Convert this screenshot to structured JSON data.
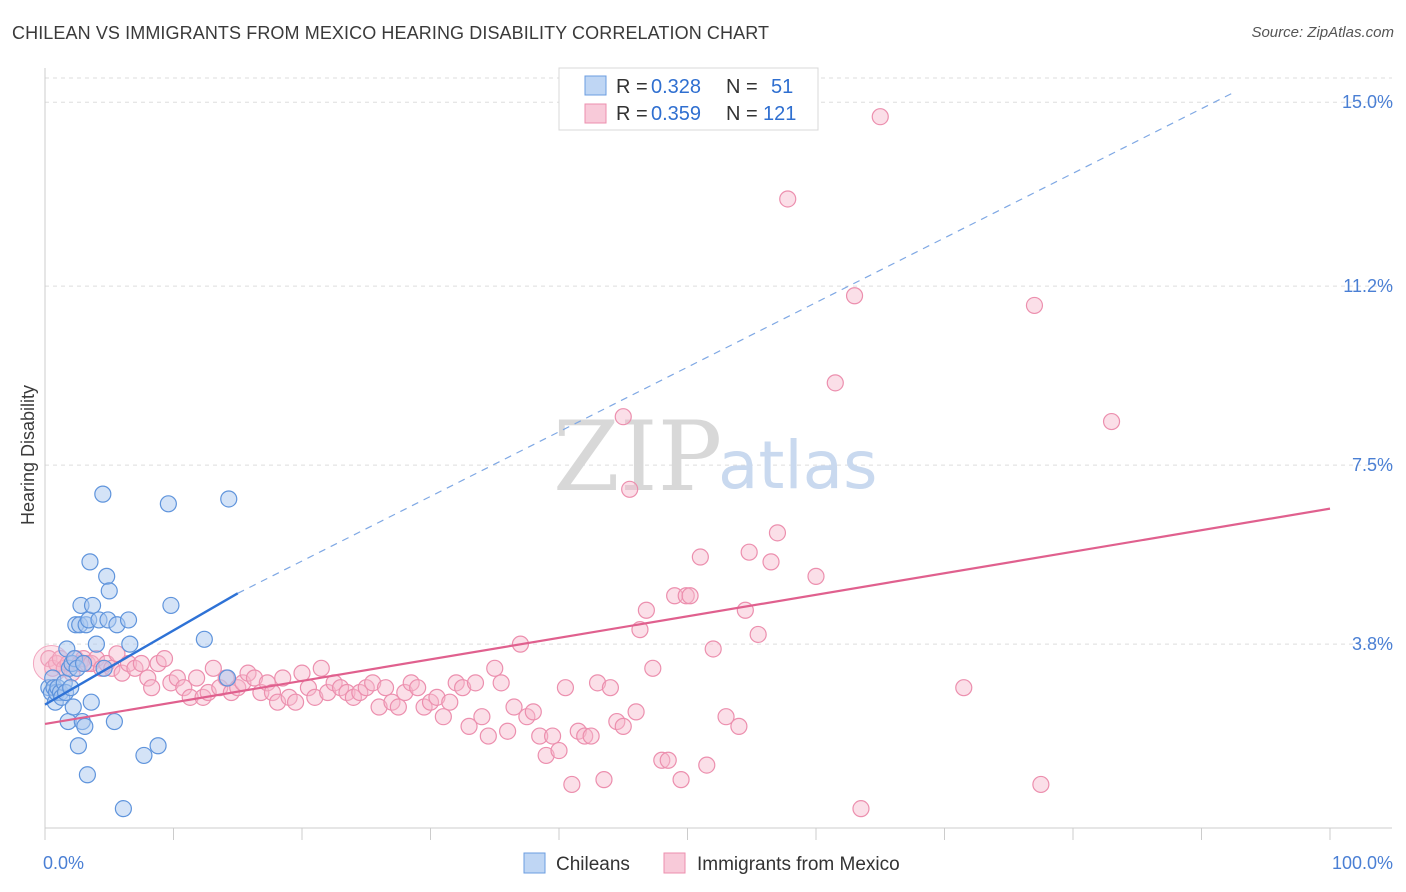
{
  "title": "CHILEAN VS IMMIGRANTS FROM MEXICO HEARING DISABILITY CORRELATION CHART",
  "source": "Source: ZipAtlas.com",
  "watermark": {
    "zip": "ZIP",
    "atlas": "atlas"
  },
  "colors": {
    "blue": "#4a86d8",
    "blue_fill": "#a9c8f0",
    "pink": "#e0608e",
    "pink_fill": "#f6b8cc",
    "tick": "#4a7fd4"
  },
  "legend": {
    "row1": {
      "r_label": "R = ",
      "r_value": "0.328",
      "n_label": "N = ",
      "n_value": "51"
    },
    "row2": {
      "r_label": "R = ",
      "r_value": "0.359",
      "n_label": "N = ",
      "n_value": "121"
    }
  },
  "bottom_legend": {
    "series1": "Chileans",
    "series2": "Immigrants from Mexico"
  },
  "chart_data": {
    "type": "scatter",
    "ylabel": "Hearing Disability",
    "xlim": [
      0,
      100
    ],
    "ylim": [
      0,
      15.5
    ],
    "x_ticks": [
      {
        "v": 0,
        "label": "0.0%"
      },
      {
        "v": 100,
        "label": "100.0%"
      }
    ],
    "y_ticks": [
      {
        "v": 3.8,
        "label": "3.8%"
      },
      {
        "v": 7.5,
        "label": "7.5%"
      },
      {
        "v": 11.2,
        "label": "11.2%"
      },
      {
        "v": 15.0,
        "label": "15.0%"
      }
    ],
    "grid": true,
    "series": [
      {
        "name": "Chileans",
        "trend": {
          "x0": 0,
          "y0": 2.55,
          "x1": 15,
          "y1": 4.85,
          "x_dash_end": 92.5,
          "y_dash_end": 15.2
        },
        "points": [
          [
            0.3,
            2.9
          ],
          [
            0.5,
            2.8
          ],
          [
            0.6,
            3.1
          ],
          [
            0.7,
            2.9
          ],
          [
            0.8,
            2.6
          ],
          [
            0.9,
            2.8
          ],
          [
            1.0,
            2.9
          ],
          [
            1.2,
            2.8
          ],
          [
            1.3,
            2.7
          ],
          [
            1.5,
            3.0
          ],
          [
            1.6,
            2.8
          ],
          [
            1.7,
            3.7
          ],
          [
            1.8,
            2.2
          ],
          [
            1.9,
            3.3
          ],
          [
            2.0,
            2.9
          ],
          [
            2.1,
            3.4
          ],
          [
            2.2,
            2.5
          ],
          [
            2.3,
            3.5
          ],
          [
            2.4,
            4.2
          ],
          [
            2.5,
            3.3
          ],
          [
            2.6,
            1.7
          ],
          [
            2.7,
            4.2
          ],
          [
            2.8,
            4.6
          ],
          [
            2.9,
            2.2
          ],
          [
            3.0,
            3.4
          ],
          [
            3.1,
            2.1
          ],
          [
            3.2,
            4.2
          ],
          [
            3.3,
            1.1
          ],
          [
            3.4,
            4.3
          ],
          [
            3.5,
            5.5
          ],
          [
            3.6,
            2.6
          ],
          [
            3.7,
            4.6
          ],
          [
            4.0,
            3.8
          ],
          [
            4.2,
            4.3
          ],
          [
            4.5,
            6.9
          ],
          [
            4.6,
            3.3
          ],
          [
            4.8,
            5.2
          ],
          [
            4.9,
            4.3
          ],
          [
            5.0,
            4.9
          ],
          [
            5.4,
            2.2
          ],
          [
            5.6,
            4.2
          ],
          [
            6.1,
            0.4
          ],
          [
            6.5,
            4.3
          ],
          [
            6.6,
            3.8
          ],
          [
            7.7,
            1.5
          ],
          [
            8.8,
            1.7
          ],
          [
            9.6,
            6.7
          ],
          [
            9.8,
            4.6
          ],
          [
            12.4,
            3.9
          ],
          [
            14.2,
            3.1
          ],
          [
            14.3,
            6.8
          ]
        ]
      },
      {
        "name": "Immigrants from Mexico",
        "trend": {
          "x0": 0,
          "y0": 2.15,
          "x1": 100,
          "y1": 6.6
        },
        "points": [
          [
            0.3,
            3.5
          ],
          [
            0.6,
            3.3
          ],
          [
            0.9,
            3.4
          ],
          [
            1.2,
            3.5
          ],
          [
            1.5,
            3.3
          ],
          [
            1.8,
            3.4
          ],
          [
            2.1,
            3.2
          ],
          [
            2.4,
            3.5
          ],
          [
            2.7,
            3.4
          ],
          [
            3.0,
            3.5
          ],
          [
            3.3,
            3.4
          ],
          [
            3.6,
            3.4
          ],
          [
            4.0,
            3.5
          ],
          [
            4.4,
            3.3
          ],
          [
            4.8,
            3.4
          ],
          [
            5.2,
            3.3
          ],
          [
            5.6,
            3.6
          ],
          [
            6.0,
            3.2
          ],
          [
            6.5,
            3.4
          ],
          [
            7.0,
            3.3
          ],
          [
            7.5,
            3.4
          ],
          [
            8.0,
            3.1
          ],
          [
            8.3,
            2.9
          ],
          [
            8.8,
            3.4
          ],
          [
            9.3,
            3.5
          ],
          [
            9.8,
            3.0
          ],
          [
            10.3,
            3.1
          ],
          [
            10.8,
            2.9
          ],
          [
            11.3,
            2.7
          ],
          [
            11.8,
            3.1
          ],
          [
            12.3,
            2.7
          ],
          [
            12.7,
            2.8
          ],
          [
            13.1,
            3.3
          ],
          [
            13.6,
            2.9
          ],
          [
            14.1,
            3.1
          ],
          [
            14.5,
            2.8
          ],
          [
            15.0,
            2.9
          ],
          [
            15.4,
            3.0
          ],
          [
            15.8,
            3.2
          ],
          [
            16.3,
            3.1
          ],
          [
            16.8,
            2.8
          ],
          [
            17.3,
            3.0
          ],
          [
            17.7,
            2.8
          ],
          [
            18.1,
            2.6
          ],
          [
            18.5,
            3.1
          ],
          [
            19.0,
            2.7
          ],
          [
            19.5,
            2.6
          ],
          [
            20.0,
            3.2
          ],
          [
            20.5,
            2.9
          ],
          [
            21.0,
            2.7
          ],
          [
            21.5,
            3.3
          ],
          [
            22.0,
            2.8
          ],
          [
            22.5,
            3.0
          ],
          [
            23.0,
            2.9
          ],
          [
            23.5,
            2.8
          ],
          [
            24.0,
            2.7
          ],
          [
            24.5,
            2.8
          ],
          [
            25.0,
            2.9
          ],
          [
            25.5,
            3.0
          ],
          [
            26.0,
            2.5
          ],
          [
            26.5,
            2.9
          ],
          [
            27.0,
            2.6
          ],
          [
            27.5,
            2.5
          ],
          [
            28.0,
            2.8
          ],
          [
            28.5,
            3.0
          ],
          [
            29.0,
            2.9
          ],
          [
            29.5,
            2.5
          ],
          [
            30.0,
            2.6
          ],
          [
            30.5,
            2.7
          ],
          [
            31.0,
            2.3
          ],
          [
            31.5,
            2.6
          ],
          [
            32.0,
            3.0
          ],
          [
            32.5,
            2.9
          ],
          [
            33.0,
            2.1
          ],
          [
            33.5,
            3.0
          ],
          [
            34.0,
            2.3
          ],
          [
            34.5,
            1.9
          ],
          [
            35.0,
            3.3
          ],
          [
            35.5,
            3.0
          ],
          [
            36.0,
            2.0
          ],
          [
            36.5,
            2.5
          ],
          [
            37.0,
            3.8
          ],
          [
            37.5,
            2.3
          ],
          [
            38.0,
            2.4
          ],
          [
            38.5,
            1.9
          ],
          [
            39.0,
            1.5
          ],
          [
            39.5,
            1.9
          ],
          [
            40.0,
            1.6
          ],
          [
            40.5,
            2.9
          ],
          [
            41.0,
            0.9
          ],
          [
            41.5,
            2.0
          ],
          [
            42.0,
            1.9
          ],
          [
            42.5,
            1.9
          ],
          [
            43.0,
            3.0
          ],
          [
            43.5,
            1.0
          ],
          [
            44.0,
            2.9
          ],
          [
            44.5,
            2.2
          ],
          [
            45.0,
            2.1
          ],
          [
            45.5,
            7.0
          ],
          [
            46.0,
            2.4
          ],
          [
            46.3,
            4.1
          ],
          [
            46.8,
            4.5
          ],
          [
            47.3,
            3.3
          ],
          [
            48.0,
            1.4
          ],
          [
            48.5,
            1.4
          ],
          [
            49.0,
            4.8
          ],
          [
            49.5,
            1.0
          ],
          [
            49.9,
            4.8
          ],
          [
            50.2,
            4.8
          ],
          [
            51.0,
            5.6
          ],
          [
            51.5,
            1.3
          ],
          [
            52.0,
            3.7
          ],
          [
            53.0,
            2.3
          ],
          [
            54.0,
            2.1
          ],
          [
            54.5,
            4.5
          ],
          [
            54.8,
            5.7
          ],
          [
            55.5,
            4.0
          ],
          [
            56.5,
            5.5
          ],
          [
            57.0,
            6.1
          ],
          [
            57.8,
            13.0
          ],
          [
            60.0,
            5.2
          ],
          [
            61.5,
            9.2
          ],
          [
            63.0,
            11.0
          ],
          [
            63.5,
            0.4
          ],
          [
            65.0,
            14.7
          ],
          [
            71.5,
            2.9
          ],
          [
            77.0,
            10.8
          ],
          [
            77.5,
            0.9
          ],
          [
            83.0,
            8.4
          ],
          [
            45.0,
            8.5
          ]
        ]
      }
    ]
  }
}
